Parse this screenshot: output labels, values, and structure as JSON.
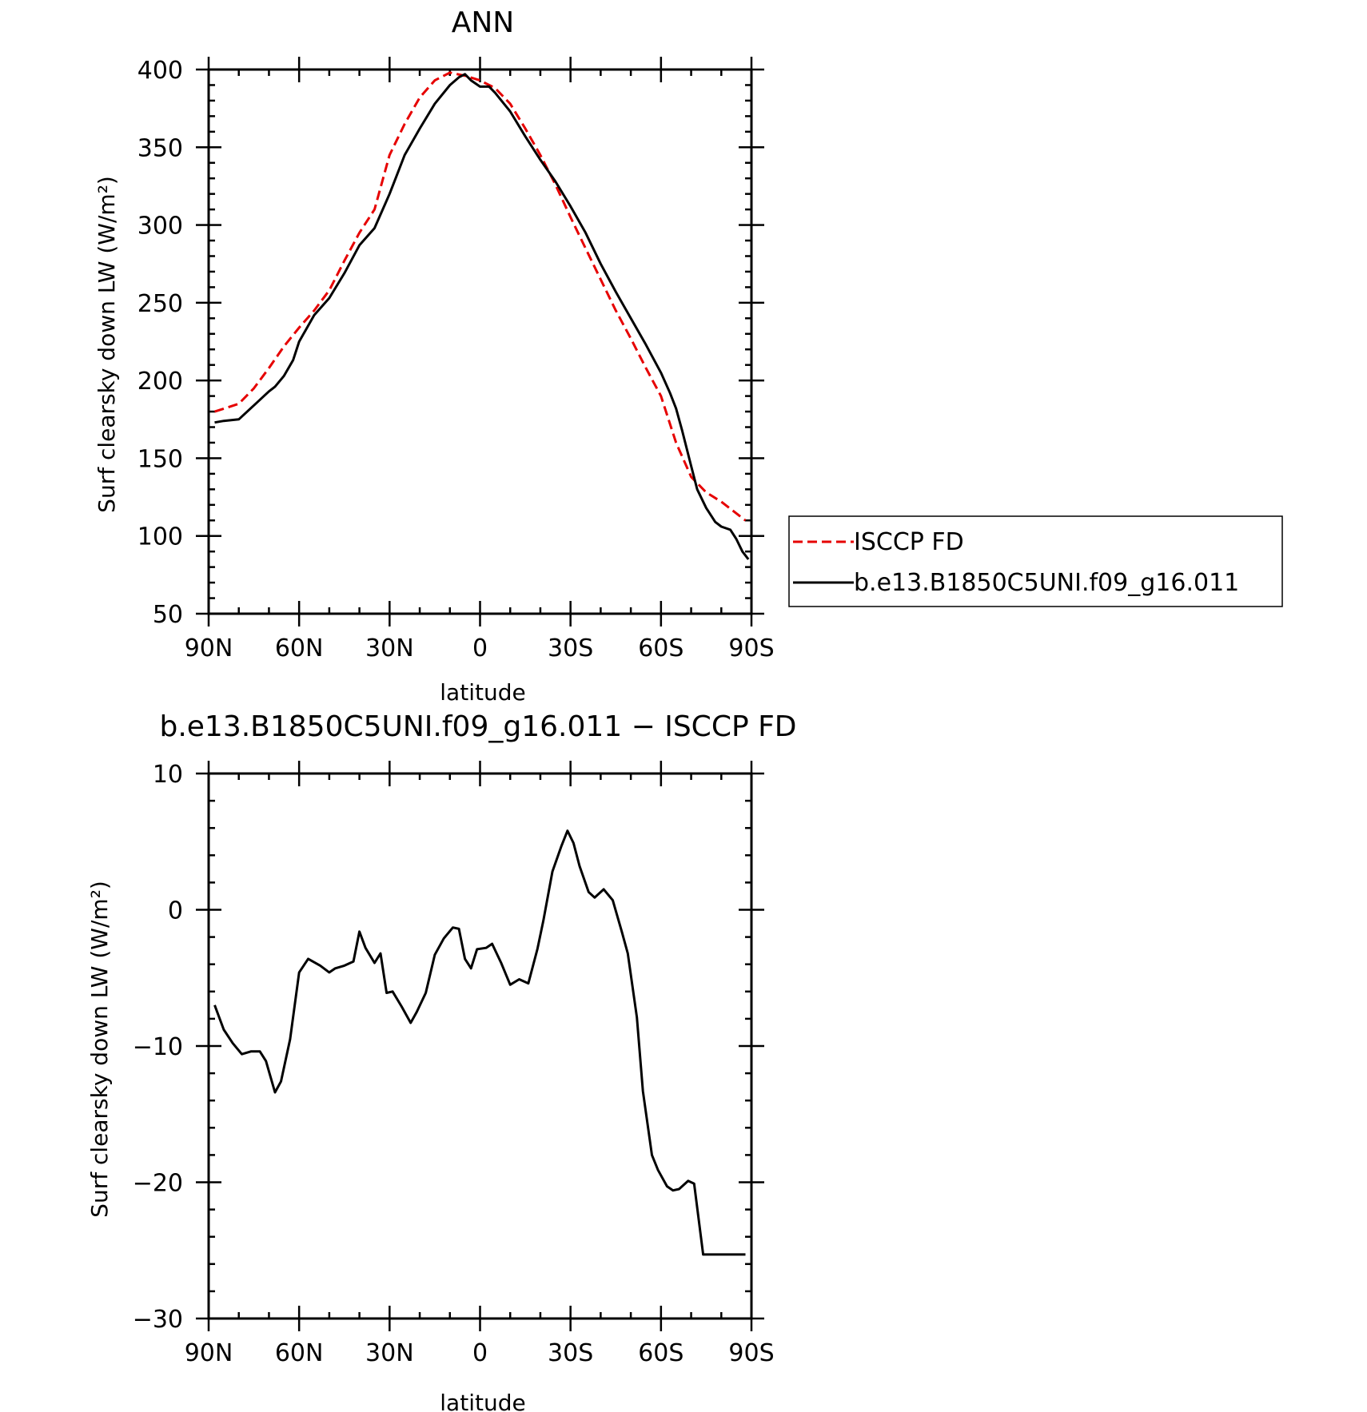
{
  "chart_data": [
    {
      "type": "line",
      "title": "ANN",
      "xlabel": "latitude",
      "ylabel": "Surf clearsky down LW (W/m²)",
      "xlim": [
        90,
        -90
      ],
      "ylim": [
        50,
        400
      ],
      "xticks": [
        90,
        60,
        30,
        0,
        -30,
        -60,
        -90
      ],
      "xtick_labels": [
        "90N",
        "60N",
        "30N",
        "0",
        "30S",
        "60S",
        "90S"
      ],
      "yticks": [
        50,
        100,
        150,
        200,
        250,
        300,
        350,
        400
      ],
      "ytick_labels": [
        "50",
        "100",
        "150",
        "200",
        "250",
        "300",
        "350",
        "400"
      ],
      "legend_position": "right",
      "series": [
        {
          "name": "ISCCP FD",
          "color": "#e60000",
          "dash": "dashed",
          "x": [
            88,
            80,
            75,
            70,
            65,
            60,
            55,
            50,
            45,
            40,
            35,
            30,
            25,
            20,
            15,
            10,
            5,
            0,
            -5,
            -10,
            -15,
            -20,
            -25,
            -30,
            -35,
            -40,
            -45,
            -50,
            -55,
            -60,
            -65,
            -70,
            -75,
            -80,
            -84,
            -88
          ],
          "y": [
            180,
            185,
            195,
            208,
            222,
            234,
            245,
            258,
            277,
            295,
            310,
            345,
            365,
            382,
            393,
            398,
            396,
            393,
            388,
            378,
            362,
            345,
            326,
            305,
            285,
            265,
            245,
            227,
            208,
            190,
            160,
            138,
            128,
            122,
            116,
            110
          ]
        },
        {
          "name": "b.e13.B1850C5UNI.f09_g16.011",
          "color": "#000000",
          "dash": "solid",
          "x": [
            88,
            85,
            80,
            75,
            70,
            68,
            65,
            62,
            60,
            55,
            50,
            45,
            40,
            35,
            30,
            28,
            25,
            20,
            15,
            10,
            7,
            5,
            3,
            0,
            -3,
            -5,
            -10,
            -15,
            -20,
            -25,
            -30,
            -35,
            -40,
            -45,
            -50,
            -55,
            -60,
            -63,
            -65,
            -67,
            -70,
            -72,
            -75,
            -78,
            -80,
            -83,
            -85,
            -87,
            -89
          ],
          "y": [
            173,
            174,
            175,
            184,
            193,
            196,
            203,
            213,
            225,
            242,
            253,
            269,
            287,
            298,
            320,
            330,
            345,
            362,
            378,
            390,
            395,
            397,
            393,
            389,
            389,
            385,
            373,
            357,
            342,
            328,
            312,
            295,
            275,
            257,
            240,
            223,
            205,
            192,
            182,
            168,
            145,
            130,
            118,
            109,
            106,
            104,
            98,
            90,
            85
          ]
        }
      ]
    },
    {
      "type": "line",
      "title": "b.e13.B1850C5UNI.f09_g16.011 − ISCCP FD",
      "xlabel": "latitude",
      "ylabel": "Surf clearsky down LW (W/m²)",
      "xlim": [
        90,
        -90
      ],
      "ylim": [
        -30,
        10
      ],
      "xticks": [
        90,
        60,
        30,
        0,
        -30,
        -60,
        -90
      ],
      "xtick_labels": [
        "90N",
        "60N",
        "30N",
        "0",
        "30S",
        "60S",
        "90S"
      ],
      "yticks": [
        -30,
        -20,
        -10,
        0,
        10
      ],
      "ytick_labels": [
        "−30",
        "−20",
        "−10",
        "0",
        "10"
      ],
      "series": [
        {
          "color": "#000000",
          "dash": "solid",
          "x": [
            88,
            85,
            82,
            79,
            76,
            73,
            71,
            68,
            66,
            63,
            60,
            57,
            53,
            50,
            48,
            45,
            42,
            40,
            38,
            35,
            33,
            31,
            29,
            26,
            23,
            21,
            18,
            15,
            12,
            9,
            7,
            5,
            3,
            1,
            -2,
            -4,
            -7,
            -10,
            -13,
            -16,
            -19,
            -21,
            -24,
            -27,
            -29,
            -31,
            -33,
            -36,
            -38,
            -41,
            -44,
            -47,
            -49,
            -52,
            -54,
            -57,
            -59,
            -62,
            -64,
            -66,
            -69,
            -71,
            -74,
            -76,
            -79,
            -82,
            -84,
            -86,
            -88
          ],
          "y": [
            -7,
            -8.8,
            -9.8,
            -10.6,
            -10.4,
            -10.4,
            -11.1,
            -13.4,
            -12.6,
            -9.5,
            -4.6,
            -3.6,
            -4.1,
            -4.6,
            -4.3,
            -4.1,
            -3.8,
            -1.6,
            -2.8,
            -3.9,
            -3.2,
            -6.1,
            -6.0,
            -7.1,
            -8.3,
            -7.5,
            -6.1,
            -3.3,
            -2.1,
            -1.3,
            -1.4,
            -3.6,
            -4.3,
            -2.9,
            -2.8,
            -2.5,
            -3.9,
            -5.5,
            -5.1,
            -5.4,
            -2.9,
            -0.8,
            2.8,
            4.7,
            5.8,
            4.9,
            3.2,
            1.3,
            0.9,
            1.5,
            0.7,
            -1.6,
            -3.2,
            -7.9,
            -13.3,
            -18.0,
            -19.1,
            -20.3,
            -20.6,
            -20.5,
            -19.9,
            -20.1,
            -25.3,
            -25.3,
            -25.3,
            -25.3,
            -25.3,
            -25.3,
            -25.3
          ]
        }
      ]
    }
  ]
}
